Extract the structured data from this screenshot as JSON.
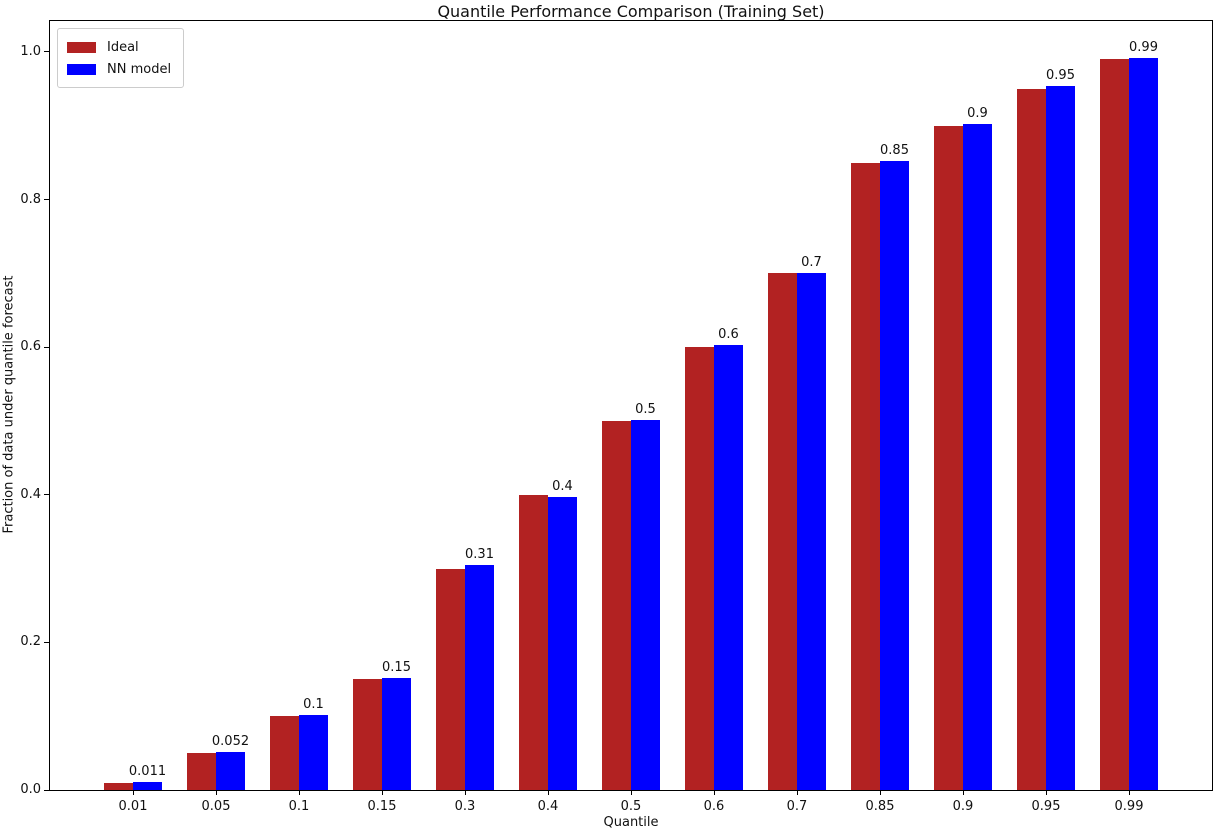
{
  "figure": {
    "background_color": "#ffffff",
    "text_color": "#111111",
    "spine_color": "#000000"
  },
  "chart_data": {
    "type": "bar",
    "title": "Quantile Performance Comparison (Training Set)",
    "xlabel": "Quantile",
    "ylabel": "Fraction of data under quantile forecast",
    "categories": [
      "0.01",
      "0.05",
      "0.1",
      "0.15",
      "0.3",
      "0.4",
      "0.5",
      "0.6",
      "0.7",
      "0.85",
      "0.9",
      "0.95",
      "0.99"
    ],
    "series": [
      {
        "name": "Ideal",
        "color": "#b22222",
        "values": [
          0.01,
          0.05,
          0.1,
          0.15,
          0.3,
          0.4,
          0.5,
          0.6,
          0.7,
          0.85,
          0.9,
          0.95,
          0.99
        ]
      },
      {
        "name": "NN model",
        "color": "#0000ff",
        "values": [
          0.011,
          0.052,
          0.101,
          0.152,
          0.305,
          0.397,
          0.502,
          0.603,
          0.7,
          0.852,
          0.902,
          0.954,
          0.992
        ]
      }
    ],
    "bar_labels": [
      "0.011",
      "0.052",
      "0.1",
      "0.15",
      "0.31",
      "0.4",
      "0.5",
      "0.6",
      "0.7",
      "0.85",
      "0.9",
      "0.95",
      "0.99"
    ],
    "bar_labels_on_series": "NN model",
    "yticks": [
      {
        "value": 0.0,
        "label": "0.0"
      },
      {
        "value": 0.2,
        "label": "0.2"
      },
      {
        "value": 0.4,
        "label": "0.4"
      },
      {
        "value": 0.6,
        "label": "0.6"
      },
      {
        "value": 0.8,
        "label": "0.8"
      },
      {
        "value": 1.0,
        "label": "1.0"
      }
    ],
    "ylim": [
      0,
      1.042
    ],
    "grid": false,
    "legend_position": "upper left"
  }
}
